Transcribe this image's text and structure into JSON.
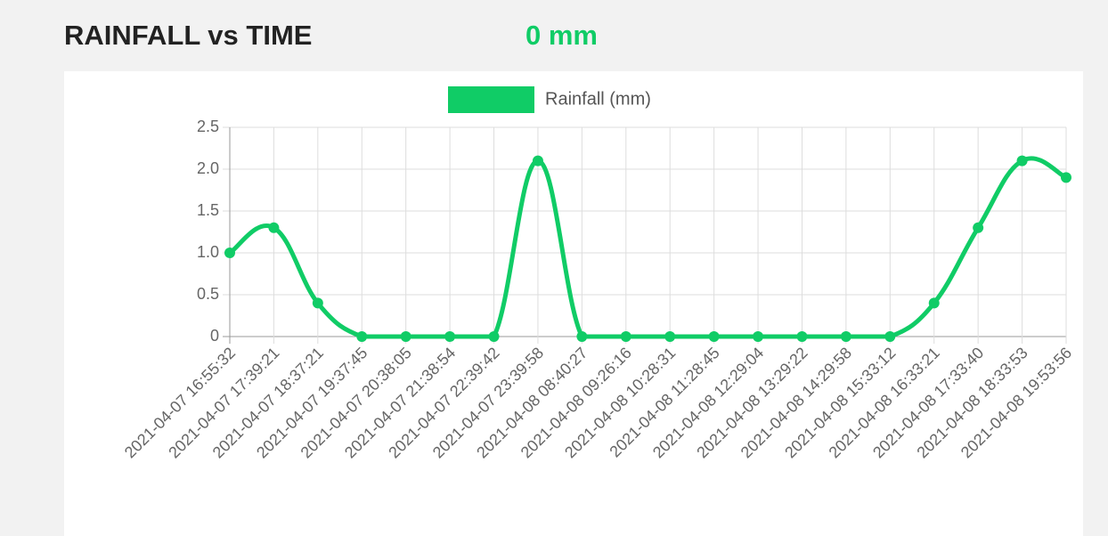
{
  "header": {
    "title": "RAINFALL vs TIME",
    "current": "0 mm"
  },
  "chart_data": {
    "type": "line",
    "categories": [
      "2021-04-07 16:55:32",
      "2021-04-07 17:39:21",
      "2021-04-07 18:37:21",
      "2021-04-07 19:37:45",
      "2021-04-07 20:38:05",
      "2021-04-07 21:38:54",
      "2021-04-07 22:39:42",
      "2021-04-07 23:39:58",
      "2021-04-08 08:40:27",
      "2021-04-08 09:26:16",
      "2021-04-08 10:28:31",
      "2021-04-08 11:28:45",
      "2021-04-08 12:29:04",
      "2021-04-08 13:29:22",
      "2021-04-08 14:29:58",
      "2021-04-08 15:33:12",
      "2021-04-08 16:33:21",
      "2021-04-08 17:33:40",
      "2021-04-08 18:33:53",
      "2021-04-08 19:53:56"
    ],
    "series": [
      {
        "name": "Rainfall (mm)",
        "color": "#10cc66",
        "values": [
          1.0,
          1.3,
          0.4,
          0,
          0,
          0,
          0,
          2.1,
          0,
          0,
          0,
          0,
          0,
          0,
          0,
          0,
          0.4,
          1.3,
          2.1,
          1.9
        ]
      }
    ],
    "ylim": [
      0,
      2.5
    ],
    "yticks": [
      0,
      0.5,
      {
        "value": 1,
        "label": "1.0"
      },
      1.5,
      {
        "value": 2,
        "label": "2.0"
      },
      2.5
    ],
    "grid": true,
    "legend": "top"
  }
}
